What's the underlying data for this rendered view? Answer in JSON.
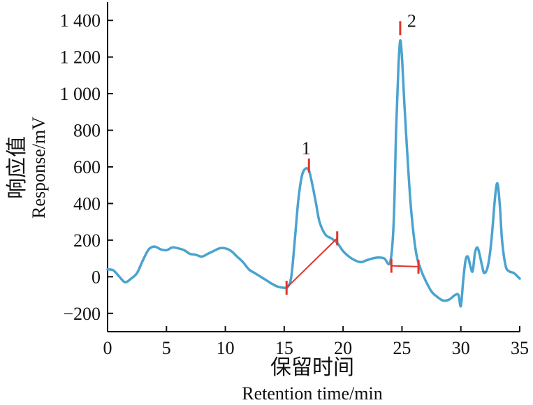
{
  "chart_data": {
    "type": "line",
    "title": "",
    "xlabel_zh": "保留时间",
    "xlabel_en": "Retention time/min",
    "ylabel_zh": "响应值",
    "ylabel_en": "Response/mV",
    "xlim": [
      0,
      35
    ],
    "ylim": [
      -300,
      1500
    ],
    "xticks": [
      0,
      5,
      10,
      15,
      20,
      25,
      30,
      35
    ],
    "xtick_labels": [
      "0",
      "5",
      "10",
      "15",
      "20",
      "25",
      "30",
      "35"
    ],
    "yticks": [
      -200,
      0,
      200,
      400,
      600,
      800,
      1000,
      1200,
      1400
    ],
    "ytick_labels": [
      "−200",
      "0",
      "200",
      "400",
      "600",
      "800",
      "1 000",
      "1 200",
      "1 400"
    ],
    "grid": false,
    "legend": "none",
    "colors": {
      "signal": "#4aa3cf",
      "integration": "#e0352b",
      "axis": "#111111"
    },
    "series": [
      {
        "x": [
          0,
          0.5,
          1,
          1.5,
          2,
          2.5,
          3,
          3.5,
          4,
          4.5,
          5,
          5.5,
          6,
          6.5,
          7,
          7.5,
          8,
          8.5,
          9,
          9.5,
          10,
          10.5,
          11,
          11.5,
          12,
          12.5,
          13,
          13.5,
          14,
          14.5,
          15,
          15.3,
          15.6,
          15.9,
          16.2,
          16.5,
          16.8,
          17.1,
          17.4,
          17.7,
          18,
          18.5,
          19,
          19.5,
          20,
          20.5,
          21,
          21.5,
          22,
          22.5,
          23,
          23.5,
          24,
          24.3,
          24.5,
          24.7,
          24.85,
          25,
          25.2,
          25.5,
          25.8,
          26.2,
          26.6,
          27,
          27.5,
          28,
          28.5,
          29,
          29.5,
          29.8,
          30,
          30.2,
          30.4,
          30.6,
          30.8,
          31,
          31.2,
          31.4,
          31.6,
          31.8,
          32,
          32.3,
          32.6,
          32.9,
          33.1,
          33.3,
          33.5,
          33.8,
          34.1,
          34.5,
          35
        ],
        "y": [
          40,
          35,
          0,
          -30,
          -10,
          20,
          90,
          150,
          165,
          150,
          145,
          160,
          155,
          145,
          125,
          120,
          110,
          125,
          140,
          155,
          155,
          140,
          110,
          80,
          40,
          20,
          0,
          -20,
          -40,
          -55,
          -60,
          -55,
          0,
          200,
          420,
          550,
          590,
          580,
          500,
          400,
          300,
          230,
          210,
          185,
          140,
          110,
          90,
          80,
          90,
          100,
          105,
          100,
          80,
          300,
          800,
          1150,
          1290,
          1200,
          950,
          620,
          350,
          130,
          40,
          -20,
          -80,
          -110,
          -130,
          -125,
          -100,
          -100,
          -160,
          -20,
          90,
          110,
          60,
          30,
          130,
          160,
          120,
          60,
          20,
          60,
          200,
          430,
          510,
          400,
          200,
          60,
          30,
          20,
          -10
        ]
      }
    ],
    "integration_markers": [
      {
        "label": "1",
        "peak": [
          17.1,
          600
        ],
        "baseline": [
          [
            15.2,
            -60
          ],
          [
            19.5,
            210
          ]
        ]
      },
      {
        "label": "2",
        "peak": [
          24.85,
          1350
        ],
        "baseline": [
          [
            24.1,
            60
          ],
          [
            26.4,
            55
          ]
        ]
      }
    ]
  }
}
